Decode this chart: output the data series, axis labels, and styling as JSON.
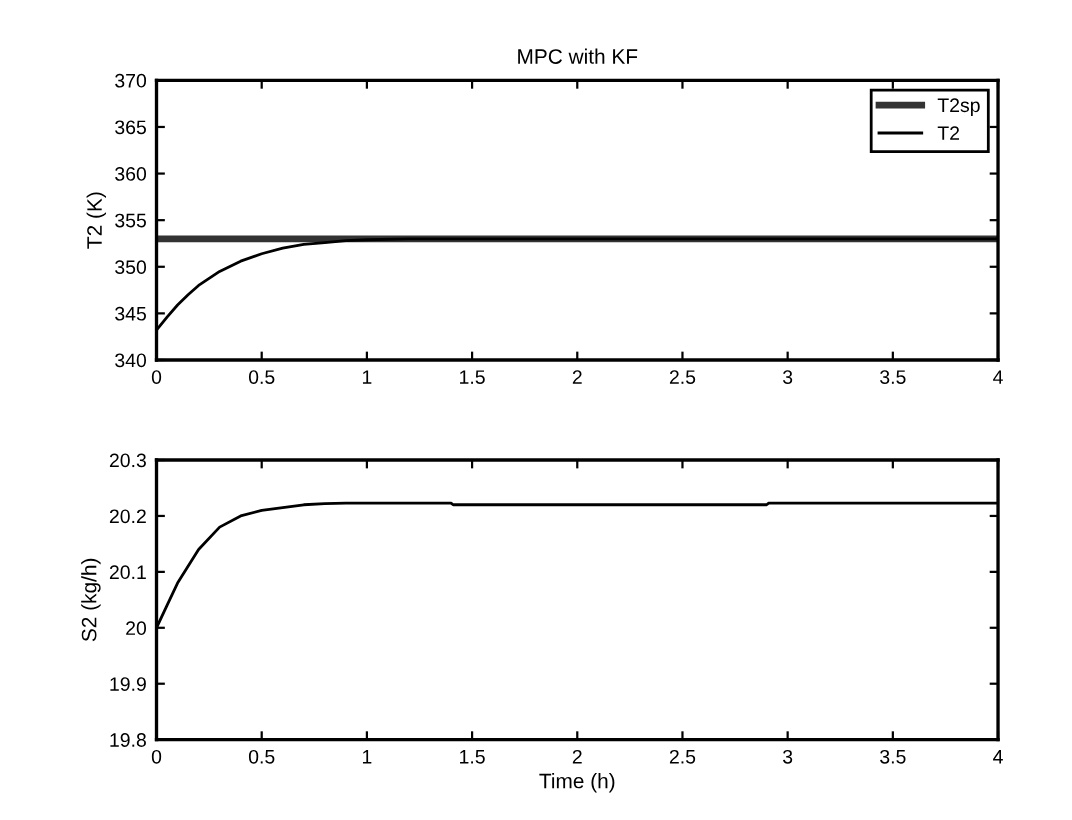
{
  "chart_data": [
    {
      "type": "line",
      "title": "MPC with KF",
      "ylabel": "T2 (K)",
      "xlim": [
        0,
        4
      ],
      "xticks": [
        0,
        0.5,
        1,
        1.5,
        2,
        2.5,
        3,
        3.5,
        4
      ],
      "ylim": [
        340,
        370
      ],
      "yticks": [
        340,
        345,
        350,
        355,
        360,
        365,
        370
      ],
      "legend": "top right",
      "grid": false,
      "series": [
        {
          "name": "T2sp",
          "color": "#333333",
          "x": [
            0,
            4
          ],
          "values": [
            353,
            353
          ]
        },
        {
          "name": "T2",
          "color": "#000000",
          "x": [
            0,
            0.05,
            0.1,
            0.15,
            0.2,
            0.3,
            0.4,
            0.5,
            0.6,
            0.7,
            0.8,
            0.9,
            1.0,
            1.2,
            1.5,
            4
          ],
          "values": [
            343.2,
            344.6,
            345.9,
            347.0,
            348.0,
            349.5,
            350.6,
            351.4,
            352.0,
            352.4,
            352.6,
            352.8,
            352.9,
            353.0,
            353.0,
            353.0
          ]
        }
      ]
    },
    {
      "type": "line",
      "xlabel": "Time (h)",
      "ylabel": "S2 (kg/h)",
      "xlim": [
        0,
        4
      ],
      "xticks": [
        0,
        0.5,
        1,
        1.5,
        2,
        2.5,
        3,
        3.5,
        4
      ],
      "ylim": [
        19.8,
        20.3
      ],
      "yticks": [
        19.8,
        19.9,
        20,
        20.1,
        20.2,
        20.3
      ],
      "grid": false,
      "series": [
        {
          "color": "#000000",
          "x": [
            0,
            0.05,
            0.1,
            0.15,
            0.2,
            0.3,
            0.4,
            0.5,
            0.6,
            0.7,
            0.8,
            0.9,
            1.4,
            1.41,
            2.9,
            2.91,
            4
          ],
          "values": [
            20.0,
            20.04,
            20.08,
            20.11,
            20.14,
            20.18,
            20.2,
            20.21,
            20.215,
            20.22,
            20.222,
            20.223,
            20.223,
            20.22,
            20.22,
            20.223,
            20.223
          ]
        }
      ]
    }
  ]
}
